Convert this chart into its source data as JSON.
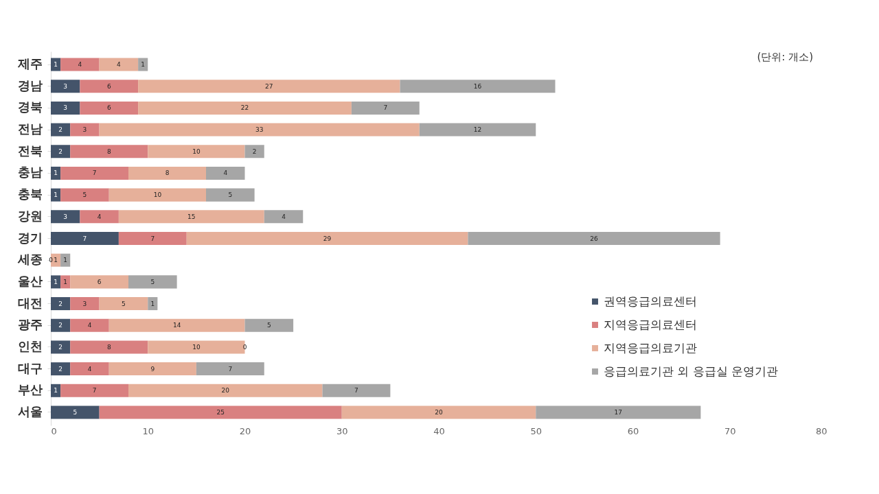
{
  "chart_data": {
    "type": "bar",
    "orientation": "horizontal",
    "stacked": true,
    "categories": [
      "제주",
      "경남",
      "경북",
      "전남",
      "전북",
      "충남",
      "충북",
      "강원",
      "경기",
      "세종",
      "울산",
      "대전",
      "광주",
      "인천",
      "대구",
      "부산",
      "서울"
    ],
    "series": [
      {
        "name": "권역응급의료센터",
        "color": "#44546a",
        "values": [
          1,
          3,
          3,
          2,
          2,
          1,
          1,
          3,
          7,
          0,
          1,
          2,
          2,
          2,
          2,
          1,
          5
        ],
        "value_labels": [
          "1",
          "3",
          "3",
          "2",
          "2",
          "1",
          "1",
          "3",
          "7",
          null,
          "1",
          "2",
          "2",
          "2",
          "2",
          "1",
          "5"
        ]
      },
      {
        "name": "지역응급의료센터",
        "color": "#d98080",
        "values": [
          4,
          6,
          6,
          3,
          8,
          7,
          5,
          4,
          7,
          0,
          1,
          3,
          4,
          8,
          4,
          7,
          25
        ],
        "value_labels": [
          "4",
          "6",
          "6",
          "3",
          "8",
          "7",
          "5",
          "4",
          "7",
          "0",
          "1",
          "3",
          "4",
          "8",
          "4",
          "7",
          "25"
        ]
      },
      {
        "name": "지역응급의료기관",
        "color": "#e6b09a",
        "values": [
          4,
          27,
          22,
          33,
          10,
          8,
          10,
          15,
          29,
          1,
          6,
          5,
          14,
          10,
          9,
          20,
          20
        ],
        "value_labels": [
          "4",
          "27",
          "22",
          "33",
          "10",
          "8",
          "10",
          "15",
          "29",
          "1",
          "6",
          "5",
          "14",
          "10",
          "9",
          "20",
          "20"
        ]
      },
      {
        "name": "응급의료기관 외 응급실 운영기관",
        "color": "#a6a6a6",
        "values": [
          1,
          16,
          7,
          12,
          2,
          4,
          5,
          4,
          26,
          1,
          5,
          1,
          5,
          0,
          7,
          7,
          17
        ],
        "value_labels": [
          "1",
          "16",
          "7",
          "12",
          "2",
          "4",
          "5",
          "4",
          "26",
          "1",
          "5",
          "1",
          "5",
          "0",
          "7",
          "7",
          "17"
        ]
      }
    ],
    "xlim": [
      0,
      80
    ],
    "xticks": [
      0,
      10,
      20,
      30,
      40,
      50,
      60,
      70,
      80
    ],
    "grid": false,
    "legend": "bottom right",
    "annotations": [
      "(단위: 개소)"
    ]
  }
}
